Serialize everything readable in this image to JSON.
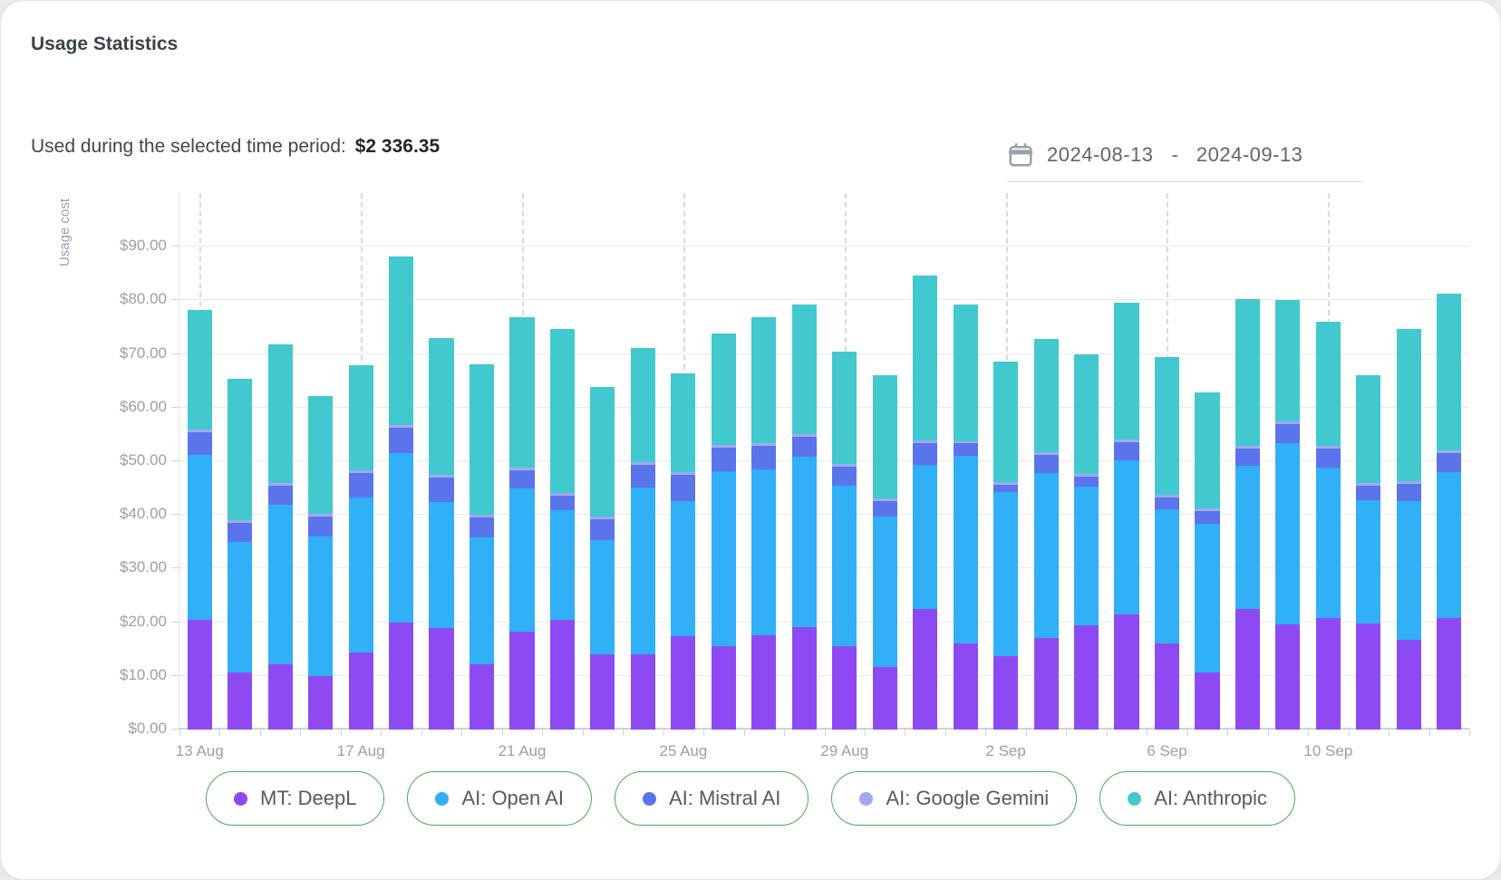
{
  "card": {
    "title": "Usage Statistics"
  },
  "summary": {
    "label": "Used during the selected time period:",
    "amount": "$2 336.35"
  },
  "date_range": {
    "start": "2024-08-13",
    "separator": "-",
    "end": "2024-09-13",
    "icon": "calendar-icon",
    "icon_color": "#98a1a8"
  },
  "colors": {
    "legend_border": "#4cab51",
    "grid_line": "#e9ebec",
    "axis_text": "#9aa0a6"
  },
  "chart_data": {
    "type": "bar",
    "stacked": true,
    "ylabel": "Usage cost",
    "ylim": [
      0,
      100
    ],
    "grid": true,
    "legend_position": "bottom",
    "y_ticks": [
      "$0.00",
      "$10.00",
      "$20.00",
      "$30.00",
      "$40.00",
      "$50.00",
      "$60.00",
      "$70.00",
      "$80.00",
      "$90.00"
    ],
    "x_tick_labels": [
      "13 Aug",
      "17 Aug",
      "21 Aug",
      "25 Aug",
      "29 Aug",
      "2 Sep",
      "6 Sep",
      "10 Sep"
    ],
    "categories": [
      "13 Aug",
      "14 Aug",
      "15 Aug",
      "16 Aug",
      "17 Aug",
      "18 Aug",
      "19 Aug",
      "20 Aug",
      "21 Aug",
      "22 Aug",
      "23 Aug",
      "24 Aug",
      "25 Aug",
      "26 Aug",
      "27 Aug",
      "28 Aug",
      "29 Aug",
      "30 Aug",
      "31 Aug",
      "1 Sep",
      "2 Sep",
      "3 Sep",
      "4 Sep",
      "5 Sep",
      "6 Sep",
      "7 Sep",
      "8 Sep",
      "9 Sep",
      "10 Sep",
      "11 Sep",
      "12 Sep",
      "13 Sep"
    ],
    "series": [
      {
        "name": "MT: DeepL",
        "color": "#8e4af2",
        "values": [
          20.5,
          10.7,
          12.2,
          9.9,
          14.4,
          19.9,
          18.9,
          12.1,
          18.2,
          20.4,
          14.1,
          14.0,
          17.4,
          15.6,
          17.5,
          19.1,
          15.5,
          11.6,
          22.4,
          16.0,
          13.7,
          17.1,
          19.4,
          21.4,
          16.0,
          10.7,
          22.4,
          19.6,
          20.8,
          19.8,
          16.8,
          20.8
        ]
      },
      {
        "name": "AI: Open AI",
        "color": "#31aff7",
        "values": [
          30.7,
          24.3,
          29.7,
          26.1,
          28.8,
          31.7,
          23.5,
          23.7,
          26.8,
          20.4,
          21.2,
          31.1,
          25.2,
          32.6,
          30.9,
          31.7,
          29.9,
          28.1,
          26.9,
          35.0,
          30.6,
          30.7,
          25.8,
          28.8,
          25.0,
          27.6,
          26.7,
          33.8,
          28.0,
          23.0,
          25.7,
          27.2
        ]
      },
      {
        "name": "AI: Mistral AI",
        "color": "#5a74ec",
        "values": [
          4.2,
          3.6,
          3.5,
          3.7,
          4.6,
          4.7,
          4.6,
          3.8,
          3.4,
          2.8,
          3.9,
          4.2,
          4.8,
          4.4,
          4.4,
          3.8,
          3.6,
          2.8,
          4.1,
          2.3,
          1.3,
          3.4,
          2.0,
          3.4,
          2.3,
          2.4,
          3.3,
          3.6,
          3.5,
          2.7,
          3.3,
          3.5
        ]
      },
      {
        "name": "AI: Google Gemini",
        "color": "#a2a8f0",
        "values": [
          0.5,
          0.5,
          0.5,
          0.5,
          0.5,
          0.5,
          0.5,
          0.5,
          0.5,
          0.5,
          0.5,
          0.5,
          0.5,
          0.5,
          0.5,
          0.5,
          0.5,
          0.5,
          0.5,
          0.5,
          0.5,
          0.5,
          0.5,
          0.5,
          0.5,
          0.5,
          0.5,
          0.5,
          0.5,
          0.5,
          0.5,
          0.5
        ]
      },
      {
        "name": "AI: Anthropic",
        "color": "#42c8cf",
        "values": [
          22.4,
          26.2,
          25.9,
          21.9,
          19.6,
          31.4,
          25.5,
          28.0,
          27.9,
          30.5,
          24.1,
          21.4,
          18.5,
          20.7,
          23.6,
          24.2,
          20.9,
          23.1,
          30.8,
          25.5,
          22.5,
          21.1,
          22.3,
          25.5,
          25.7,
          21.7,
          27.3,
          22.6,
          23.3,
          20.0,
          28.4,
          29.2
        ]
      }
    ]
  }
}
